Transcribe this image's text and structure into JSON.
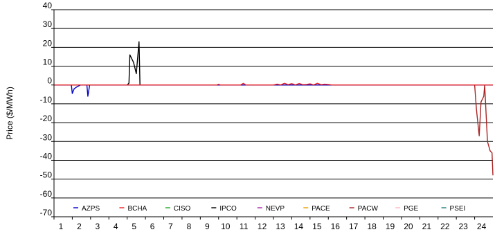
{
  "chart_data": {
    "type": "line",
    "ylabel": "Price ($/MWh)",
    "xlabel": "",
    "ylim": [
      -70,
      40
    ],
    "xlim": [
      1,
      25
    ],
    "yticks": [
      40,
      30,
      20,
      10,
      0,
      -10,
      -20,
      -30,
      -40,
      -50,
      -60,
      -70
    ],
    "ytick_labels": [
      "40",
      "30",
      "20",
      "10",
      "0",
      "-10",
      "-20",
      "-30",
      "-40",
      "-50",
      "-60",
      "-70"
    ],
    "xticks": [
      1,
      2,
      3,
      4,
      5,
      6,
      7,
      8,
      9,
      10,
      11,
      12,
      13,
      14,
      15,
      16,
      17,
      18,
      19,
      20,
      21,
      22,
      23,
      24
    ],
    "xtick_labels": [
      "1",
      "2",
      "3",
      "4",
      "5",
      "6",
      "7",
      "8",
      "9",
      "10",
      "11",
      "12",
      "13",
      "14",
      "15",
      "16",
      "17",
      "18",
      "19",
      "20",
      "21",
      "22",
      "23",
      "24"
    ],
    "grid": "horizontal",
    "legend_position": "bottom",
    "series": [
      {
        "name": "AZPS",
        "color": "#0000cc",
        "x": [
          1,
          1.95,
          2.0,
          2.1,
          2.25,
          2.45,
          2.55,
          2.8,
          2.85,
          2.9,
          2.95,
          3.0,
          25
        ],
        "y": [
          0,
          0,
          -4.5,
          -2,
          -1,
          0,
          0,
          0,
          -6,
          -3,
          0,
          0,
          0
        ]
      },
      {
        "name": "BCHA",
        "color": "#ee2222",
        "x": [
          1,
          9.9,
          10.0,
          10.1,
          11.2,
          11.35,
          11.5,
          13.0,
          13.2,
          13.4,
          13.6,
          13.8,
          14.0,
          14.2,
          14.4,
          14.6,
          14.8,
          15.0,
          15.2,
          15.4,
          15.6,
          15.8,
          16.0,
          16.2,
          25
        ],
        "y": [
          0,
          0,
          0.4,
          0,
          0,
          0.9,
          0,
          0,
          0.5,
          0.1,
          0.9,
          0.2,
          0.7,
          0.1,
          0.8,
          0.2,
          0.3,
          0.6,
          0.1,
          0.9,
          0.2,
          0.4,
          0.3,
          0,
          0
        ]
      },
      {
        "name": "CISO",
        "color": "#22aa22",
        "x": [
          1,
          25
        ],
        "y": [
          0,
          0
        ]
      },
      {
        "name": "IPCO",
        "color": "#000000",
        "x": [
          1,
          5.0,
          5.1,
          5.15,
          5.35,
          5.5,
          5.65,
          5.7,
          5.75,
          25
        ],
        "y": [
          0,
          0,
          1,
          16,
          12,
          6,
          23,
          0,
          0,
          0
        ]
      },
      {
        "name": "NEVP",
        "color": "#aa22aa",
        "x": [
          1,
          25
        ],
        "y": [
          0,
          0
        ]
      },
      {
        "name": "PACE",
        "color": "#f0a000",
        "x": [
          1,
          25
        ],
        "y": [
          0,
          0
        ]
      },
      {
        "name": "PACW",
        "color": "#aa2222",
        "x": [
          1,
          24.0,
          24.1,
          24.25,
          24.35,
          24.5,
          24.55,
          24.7,
          24.85,
          24.95,
          25.0
        ],
        "y": [
          0,
          0,
          -13,
          -27,
          -9,
          -6,
          0,
          -30,
          -35,
          -36,
          -48
        ]
      },
      {
        "name": "PGE",
        "color": "#ffb6c1",
        "x": [
          1,
          25
        ],
        "y": [
          0,
          0
        ]
      },
      {
        "name": "PSEI",
        "color": "#208080",
        "x": [
          1,
          25
        ],
        "y": [
          0,
          0
        ]
      }
    ]
  }
}
